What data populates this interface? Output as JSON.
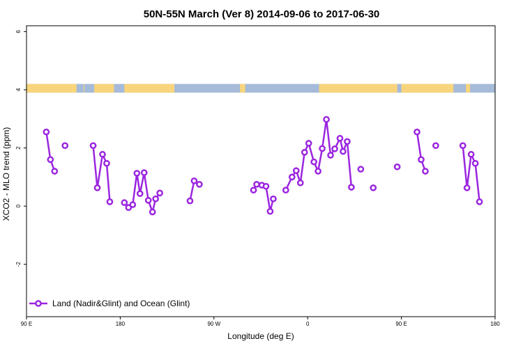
{
  "chart_data": {
    "type": "line",
    "title": "50N-55N March (Ver 8)   2014-09-06 to 2017-06-30",
    "xlabel": "Longitude (deg E)",
    "ylabel": "XCO2 - MLO trend (ppm)",
    "xlim": [
      90,
      540
    ],
    "ylim": [
      -3.8,
      6.2
    ],
    "x_ticks": [
      {
        "value": 90,
        "label": "90 E"
      },
      {
        "value": 180,
        "label": "180"
      },
      {
        "value": 270,
        "label": "90 W"
      },
      {
        "value": 360,
        "label": "0"
      },
      {
        "value": 450,
        "label": "90 E"
      },
      {
        "value": 540,
        "label": "180"
      }
    ],
    "y_ticks": [
      {
        "value": 6,
        "label": "6"
      },
      {
        "value": 4,
        "label": "4"
      },
      {
        "value": 2,
        "label": "2"
      },
      {
        "value": 0,
        "label": "0"
      },
      {
        "value": -2,
        "label": "-2"
      }
    ],
    "legend": {
      "label": "Land (Nadir&Glint) and Ocean (Glint)",
      "position": "bottom-left"
    },
    "colors": {
      "series": "#9b26e0",
      "land": "#f8d57c",
      "ocean": "#a6bbd9"
    },
    "land_ocean_strip": {
      "y_range": [
        3.9,
        4.2
      ],
      "land_intervals": [
        [
          90,
          138
        ],
        [
          145,
          145.5
        ],
        [
          155,
          174
        ],
        [
          184,
          232
        ],
        [
          295,
          300
        ],
        [
          371,
          446
        ],
        [
          450,
          500
        ],
        [
          512,
          516
        ]
      ]
    },
    "series": [
      {
        "name": "Land (Nadir&Glint) and Ocean (Glint)",
        "segments": [
          [
            [
              109,
              2.55
            ],
            [
              113,
              1.6
            ],
            [
              117,
              1.2
            ]
          ],
          [
            [
              127,
              2.08
            ]
          ],
          [
            [
              154,
              2.08
            ],
            [
              158,
              0.63
            ],
            [
              163,
              1.78
            ],
            [
              167,
              1.47
            ],
            [
              170,
              0.15
            ]
          ],
          [
            [
              184,
              0.12
            ],
            [
              188,
              -0.05
            ],
            [
              192,
              0.05
            ],
            [
              196,
              1.13
            ],
            [
              199,
              0.43
            ],
            [
              203,
              1.15
            ],
            [
              207,
              0.2
            ],
            [
              211,
              -0.2
            ],
            [
              214,
              0.25
            ],
            [
              218,
              0.45
            ]
          ],
          [
            [
              247,
              0.18
            ],
            [
              251,
              0.87
            ],
            [
              256,
              0.75
            ]
          ],
          [
            [
              308,
              0.55
            ],
            [
              311,
              0.75
            ],
            [
              316,
              0.72
            ],
            [
              320,
              0.68
            ],
            [
              324,
              -0.18
            ],
            [
              327,
              0.25
            ]
          ],
          [
            [
              339,
              0.55
            ],
            [
              345,
              1.0
            ],
            [
              349,
              1.22
            ],
            [
              353,
              0.8
            ],
            [
              357,
              1.85
            ],
            [
              361,
              2.16
            ],
            [
              366,
              1.52
            ],
            [
              370,
              1.2
            ],
            [
              374,
              1.98
            ],
            [
              378,
              2.98
            ],
            [
              382,
              1.75
            ],
            [
              386,
              1.97
            ],
            [
              391,
              2.33
            ],
            [
              394,
              1.88
            ],
            [
              398,
              2.22
            ],
            [
              402,
              0.65
            ]
          ],
          [
            [
              411,
              1.27
            ]
          ],
          [
            [
              423,
              0.63
            ]
          ],
          [
            [
              446,
              1.35
            ]
          ],
          [
            [
              465,
              2.55
            ],
            [
              469,
              1.6
            ],
            [
              473,
              1.2
            ]
          ],
          [
            [
              483,
              2.08
            ]
          ],
          [
            [
              509,
              2.08
            ],
            [
              513,
              0.63
            ],
            [
              517,
              1.78
            ],
            [
              521,
              1.47
            ],
            [
              525,
              0.15
            ]
          ]
        ]
      }
    ]
  }
}
